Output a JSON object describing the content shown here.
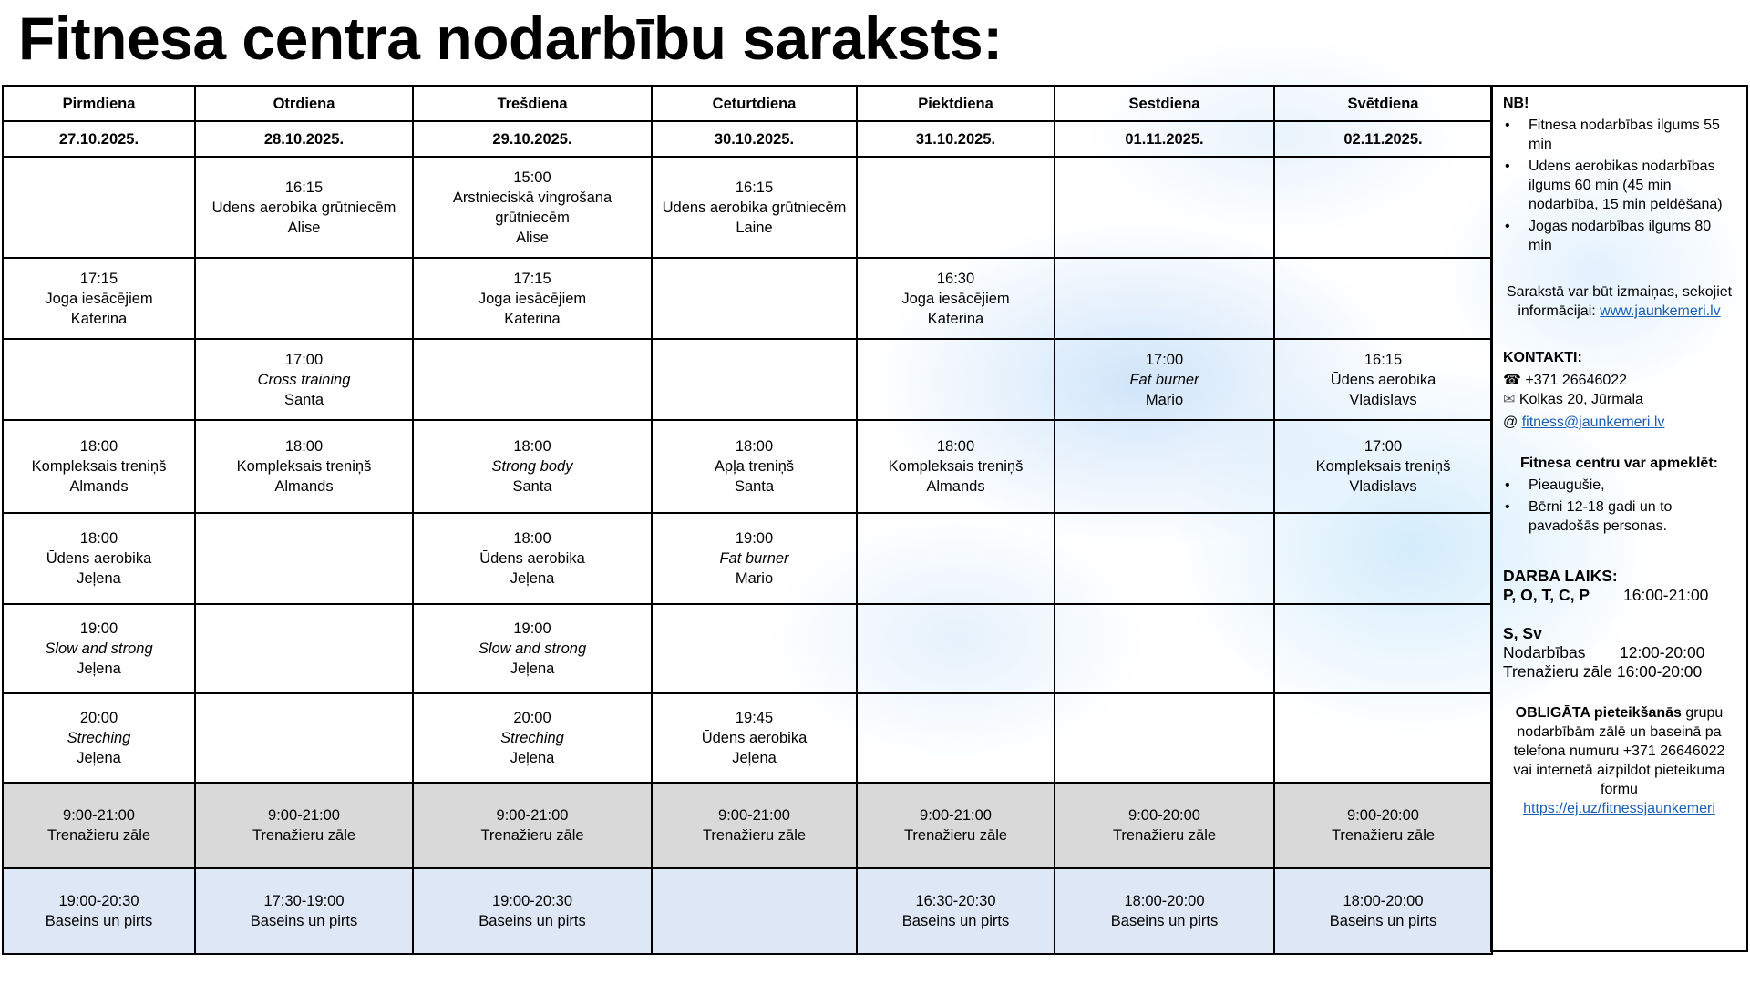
{
  "title": "Fitnesa centra nodarbību saraksts:",
  "days": [
    "Pirmdiena",
    "Otrdiena",
    "Trešdiena",
    "Ceturtdiena",
    "Piektdiena",
    "Sestdiena",
    "Svētdiena"
  ],
  "dates": [
    "27.10.2025.",
    "28.10.2025.",
    "29.10.2025.",
    "30.10.2025.",
    "31.10.2025.",
    "01.11.2025.",
    "02.11.2025."
  ],
  "rows": [
    [
      null,
      {
        "time": "16:15",
        "name": "Ūdens aerobika grūtniecēm",
        "coach": "Alise"
      },
      {
        "time": "15:00",
        "name": "Ārstnieciskā vingrošana grūtniecēm",
        "coach": "Alise"
      },
      {
        "time": "16:15",
        "name": "Ūdens aerobika grūtniecēm",
        "coach": "Laine"
      },
      null,
      null,
      null
    ],
    [
      {
        "time": "17:15",
        "name": "Joga iesācējiem",
        "coach": "Katerina"
      },
      null,
      {
        "time": "17:15",
        "name": "Joga iesācējiem",
        "coach": "Katerina"
      },
      null,
      {
        "time": "16:30",
        "name": "Joga iesācējiem",
        "coach": "Katerina"
      },
      null,
      null
    ],
    [
      null,
      {
        "time": "17:00",
        "name": "Cross training",
        "coach": "Santa",
        "italic": true
      },
      null,
      null,
      null,
      {
        "time": "17:00",
        "name": "Fat burner",
        "coach": "Mario",
        "italic": true
      },
      {
        "time": "16:15",
        "name": "Ūdens aerobika",
        "coach": "Vladislavs"
      }
    ],
    [
      {
        "time": "18:00",
        "name": "Kompleksais treniņš",
        "coach": "Almands"
      },
      {
        "time": "18:00",
        "name": "Kompleksais treniņš",
        "coach": "Almands"
      },
      {
        "time": "18:00",
        "name": "Strong body",
        "coach": "Santa",
        "italic": true
      },
      {
        "time": "18:00",
        "name": "Apļa treniņš",
        "coach": "Santa"
      },
      {
        "time": "18:00",
        "name": "Kompleksais treniņš",
        "coach": "Almands"
      },
      null,
      {
        "time": "17:00",
        "name": "Kompleksais treniņš",
        "coach": "Vladislavs"
      }
    ],
    [
      {
        "time": "18:00",
        "name": "Ūdens aerobika",
        "coach": "Jeļena"
      },
      null,
      {
        "time": "18:00",
        "name": "Ūdens aerobika",
        "coach": "Jeļena"
      },
      {
        "time": "19:00",
        "name": "Fat burner",
        "coach": "Mario",
        "italic": true
      },
      null,
      null,
      null
    ],
    [
      {
        "time": "19:00",
        "name": "Slow and strong",
        "coach": "Jeļena",
        "italic": true
      },
      null,
      {
        "time": "19:00",
        "name": "Slow and strong",
        "coach": "Jeļena",
        "italic": true
      },
      null,
      null,
      null,
      null
    ],
    [
      {
        "time": "20:00",
        "name": "Streching",
        "coach": "Jeļena",
        "italic": true
      },
      null,
      {
        "time": "20:00",
        "name": "Streching",
        "coach": "Jeļena",
        "italic": true
      },
      {
        "time": "19:45",
        "name": "Ūdens aerobika",
        "coach": "Jeļena"
      },
      null,
      null,
      null
    ]
  ],
  "gym": [
    {
      "time": "9:00-21:00",
      "name": "Trenažieru zāle"
    },
    {
      "time": "9:00-21:00",
      "name": "Trenažieru zāle"
    },
    {
      "time": "9:00-21:00",
      "name": "Trenažieru zāle"
    },
    {
      "time": "9:00-21:00",
      "name": "Trenažieru zāle"
    },
    {
      "time": "9:00-21:00",
      "name": "Trenažieru zāle"
    },
    {
      "time": "9:00-20:00",
      "name": "Trenažieru zāle"
    },
    {
      "time": "9:00-20:00",
      "name": "Trenažieru zāle"
    }
  ],
  "pool": [
    {
      "time": "19:00-20:30",
      "name": "Baseins un pirts"
    },
    {
      "time": "17:30-19:00",
      "name": "Baseins un pirts"
    },
    {
      "time": "19:00-20:30",
      "name": "Baseins un pirts"
    },
    null,
    {
      "time": "16:30-20:30",
      "name": "Baseins un pirts"
    },
    {
      "time": "18:00-20:00",
      "name": "Baseins un pirts"
    },
    {
      "time": "18:00-20:00",
      "name": "Baseins un pirts"
    }
  ],
  "panel": {
    "nb_title": "NB!",
    "nb_items": [
      "Fitnesa nodarbības ilgums 55 min",
      "Ūdens aerobikas nodarbības ilgums 60 min (45 min nodarbība, 15 min peldēšana)",
      "Jogas nodarbības ilgums  80 min"
    ],
    "changes_text": "Sarakstā var būt izmaiņas, sekojiet informācijai:",
    "website": "www.jaunkemeri.lv",
    "contacts_title": "KONTAKTI:",
    "phone": "+371 26646022",
    "address": "Kolkas 20, Jūrmala",
    "email": "fitness@jaunkemeri.lv",
    "visit_title": "Fitnesa centru var apmeklēt:",
    "visit_items": [
      "Pieaugušie,",
      "Bērni 12-18 gadi un to pavadošās personas."
    ],
    "hours_title": "DARBA LAIKS:",
    "weekdays_label": "P, O, T, C, P",
    "weekdays_hours": "16:00-21:00",
    "weekend_label": "S, Sv",
    "activities_label": "Nodarbības",
    "activities_hours": "12:00-20:00",
    "gym_label": "Trenažieru zāle",
    "gym_hours": "16:00-20:00",
    "signup_bold": "OBLIGĀTA pieteikšanās",
    "signup_text": "grupu nodarbībām zālē un baseinā pa telefona numuru +371 26646022 vai internetā aizpildot pieteikuma formu",
    "signup_link": "https://ej.uz/fitnessjaunkemeri"
  }
}
